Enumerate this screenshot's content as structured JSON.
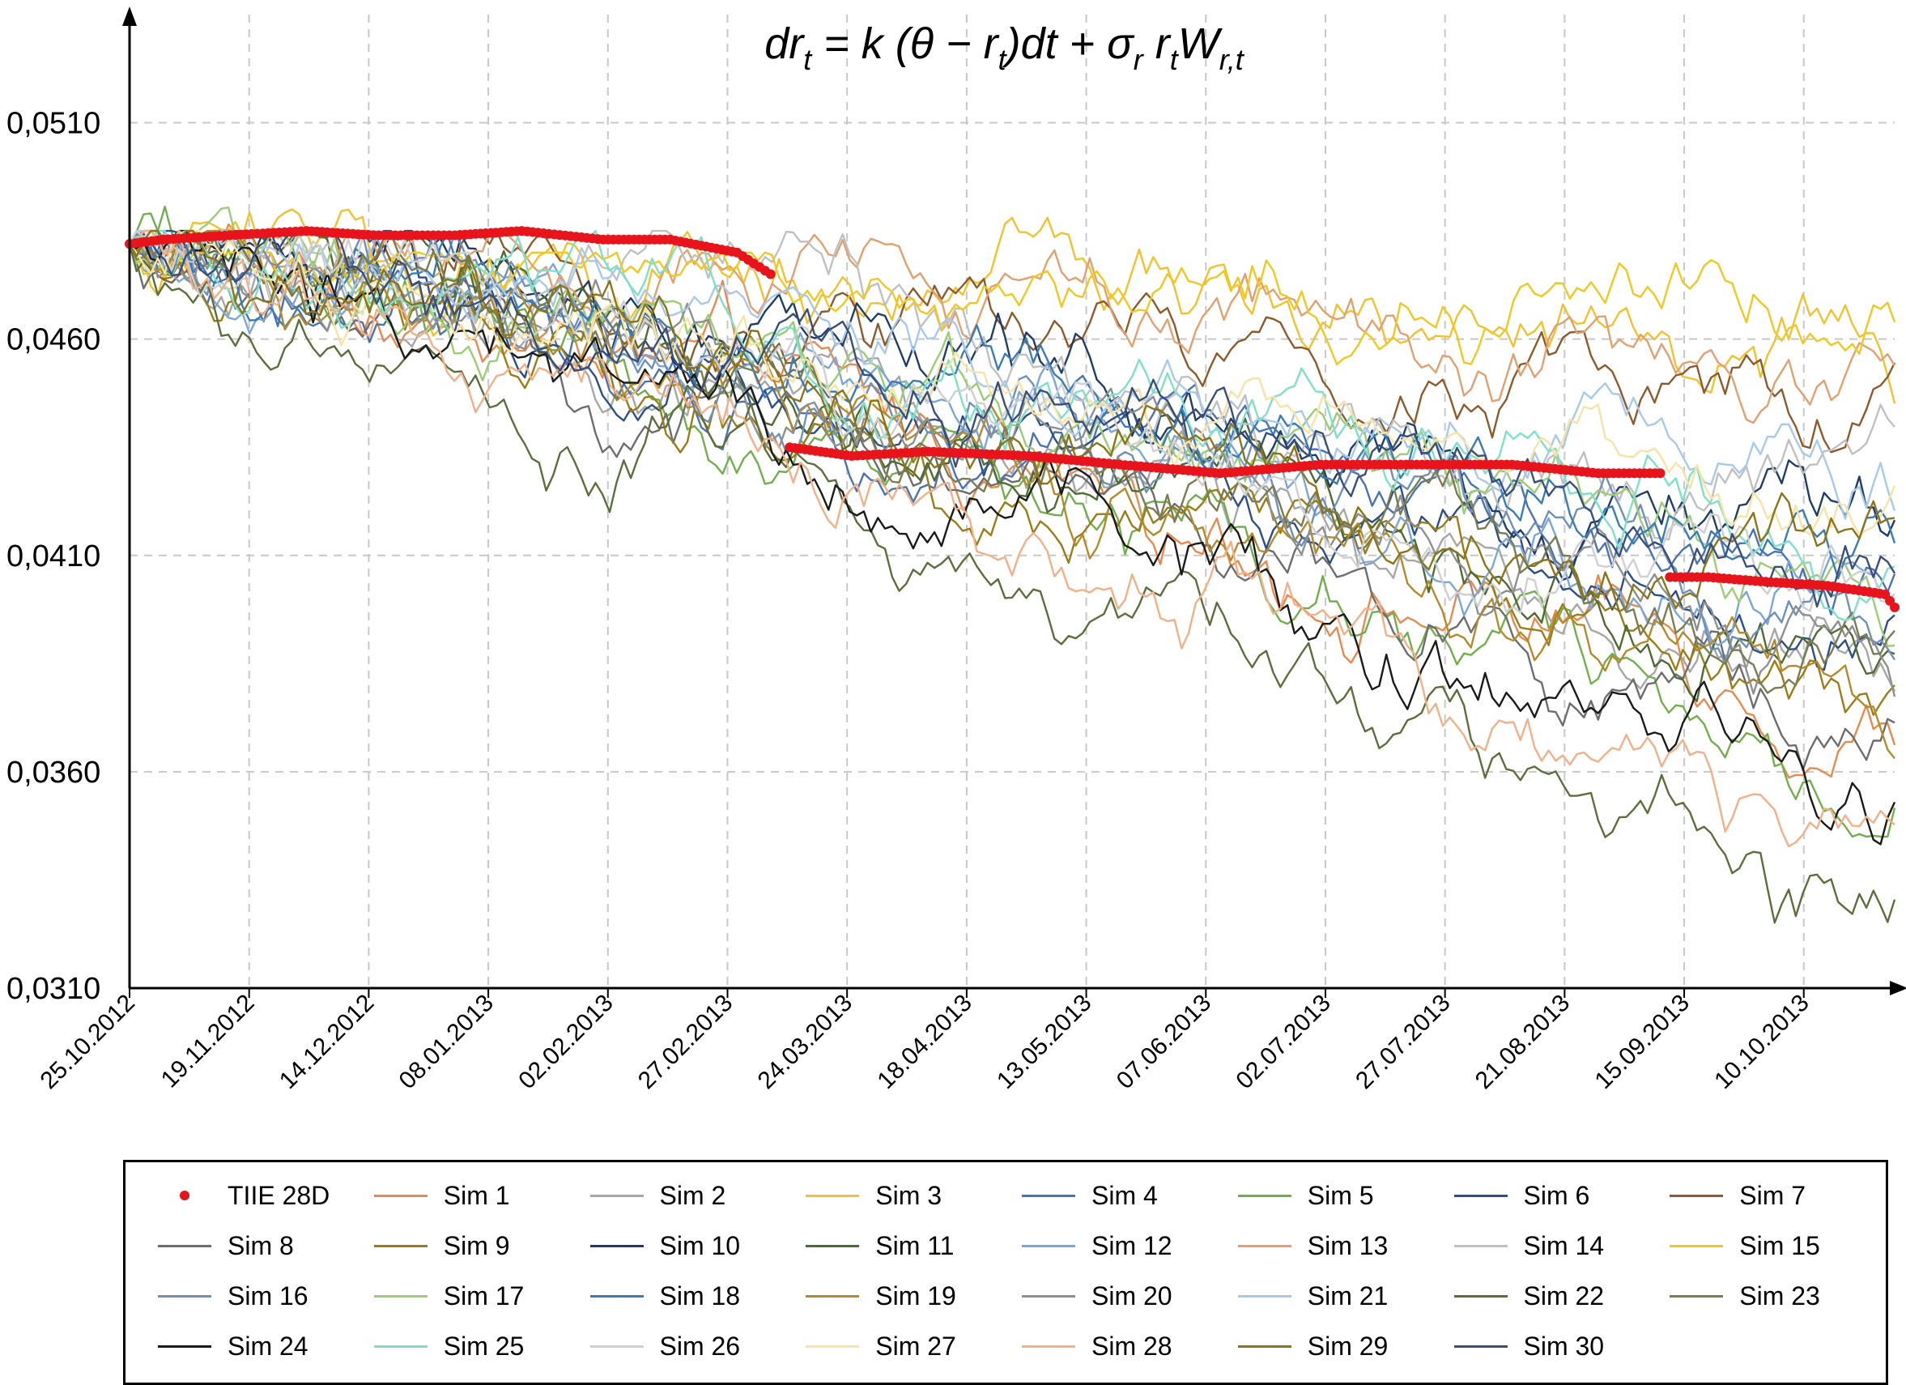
{
  "chart_data": {
    "type": "line",
    "title": "dr_t = k(θ − r_t)dt + σ_r r_t W_r,t",
    "title_parts": {
      "lhs": "dr",
      "sub_t1": "t",
      "eq": " = k (θ − r",
      "sub_t2": "t",
      "mid": ")dt + σ",
      "sub_r": "r",
      "r": " r",
      "sub_t3": "t",
      "w": "W",
      "sub_rt": "r,t"
    },
    "xlabel": "",
    "ylabel": "",
    "ylim": [
      0.031,
      0.0535
    ],
    "y_ticks": [
      {
        "value": 0.031,
        "label": "0,0310"
      },
      {
        "value": 0.036,
        "label": "0,0360"
      },
      {
        "value": 0.041,
        "label": "0,0410"
      },
      {
        "value": 0.046,
        "label": "0,0460"
      },
      {
        "value": 0.051,
        "label": "0,0510"
      }
    ],
    "x_range": [
      "2012-10-25",
      "2013-10-29"
    ],
    "x_ticks": [
      "25.10.2012",
      "19.11.2012",
      "14.12.2012",
      "08.01.2013",
      "02.02.2013",
      "27.02.2013",
      "24.03.2013",
      "18.04.2013",
      "13.05.2013",
      "07.06.2013",
      "02.07.2013",
      "27.07.2013",
      "21.08.2013",
      "15.09.2013",
      "10.10.2013"
    ],
    "grid": true,
    "legend_position": "bottom",
    "tiie": {
      "name": "TIIE 28D",
      "color": "#e8141c",
      "segments": [
        {
          "x": [
            "2012-10-25",
            "2012-11-01",
            "2012-11-15",
            "2012-12-01",
            "2012-12-15",
            "2013-01-01",
            "2013-01-15",
            "2013-02-01",
            "2013-02-15",
            "2013-03-01",
            "2013-03-08"
          ],
          "y": [
            0.0482,
            0.0483,
            0.0484,
            0.0485,
            0.0484,
            0.0484,
            0.0485,
            0.0483,
            0.0483,
            0.048,
            0.0475
          ]
        },
        {
          "x": [
            "2013-03-12",
            "2013-03-25",
            "2013-04-10",
            "2013-05-01",
            "2013-05-20",
            "2013-06-10",
            "2013-07-01",
            "2013-07-20",
            "2013-08-10",
            "2013-08-28",
            "2013-09-10"
          ],
          "y": [
            0.0435,
            0.0433,
            0.0434,
            0.0433,
            0.0431,
            0.0429,
            0.0431,
            0.0431,
            0.0431,
            0.0429,
            0.0429
          ]
        },
        {
          "x": [
            "2013-09-12",
            "2013-09-20",
            "2013-10-01",
            "2013-10-15",
            "2013-10-27",
            "2013-10-29"
          ],
          "y": [
            0.0405,
            0.0405,
            0.0404,
            0.0403,
            0.0401,
            0.0398
          ]
        }
      ]
    },
    "series": [
      {
        "name": "Sim 1",
        "color": "#e88a4f",
        "end": 0.0365,
        "lo": 0.0335,
        "hi": 0.0495
      },
      {
        "name": "Sim 2",
        "color": "#a7a7a7",
        "end": 0.0375,
        "lo": 0.0345,
        "hi": 0.048
      },
      {
        "name": "Sim 3",
        "color": "#f2c12e",
        "end": 0.0455,
        "lo": 0.042,
        "hi": 0.049
      },
      {
        "name": "Sim 4",
        "color": "#4a72b5",
        "end": 0.04,
        "lo": 0.0375,
        "hi": 0.0485
      },
      {
        "name": "Sim 5",
        "color": "#72ae4e",
        "end": 0.035,
        "lo": 0.0345,
        "hi": 0.0512
      },
      {
        "name": "Sim 6",
        "color": "#2b4f86",
        "end": 0.0385,
        "lo": 0.037,
        "hi": 0.0485
      },
      {
        "name": "Sim 7",
        "color": "#8e5a2c",
        "end": 0.044,
        "lo": 0.039,
        "hi": 0.0485
      },
      {
        "name": "Sim 8",
        "color": "#6d6d6d",
        "end": 0.036,
        "lo": 0.0335,
        "hi": 0.048
      },
      {
        "name": "Sim 9",
        "color": "#9a7d17",
        "end": 0.0375,
        "lo": 0.0365,
        "hi": 0.0485
      },
      {
        "name": "Sim 10",
        "color": "#1f3d66",
        "end": 0.041,
        "lo": 0.038,
        "hi": 0.0485
      },
      {
        "name": "Sim 11",
        "color": "#4f6b33",
        "end": 0.038,
        "lo": 0.037,
        "hi": 0.0485
      },
      {
        "name": "Sim 12",
        "color": "#7ba6d8",
        "end": 0.0395,
        "lo": 0.038,
        "hi": 0.0485
      },
      {
        "name": "Sim 13",
        "color": "#e0a070",
        "end": 0.045,
        "lo": 0.042,
        "hi": 0.0485
      },
      {
        "name": "Sim 14",
        "color": "#c0c0c0",
        "end": 0.042,
        "lo": 0.04,
        "hi": 0.0485
      },
      {
        "name": "Sim 15",
        "color": "#f0c820",
        "end": 0.0465,
        "lo": 0.042,
        "hi": 0.048
      },
      {
        "name": "Sim 16",
        "color": "#6f90b8",
        "end": 0.0385,
        "lo": 0.0375,
        "hi": 0.0485
      },
      {
        "name": "Sim 17",
        "color": "#9ccc76",
        "end": 0.0395,
        "lo": 0.038,
        "hi": 0.0495
      },
      {
        "name": "Sim 18",
        "color": "#3b7cb6",
        "end": 0.041,
        "lo": 0.0385,
        "hi": 0.0485
      },
      {
        "name": "Sim 19",
        "color": "#b58a2a",
        "end": 0.037,
        "lo": 0.036,
        "hi": 0.0485
      },
      {
        "name": "Sim 20",
        "color": "#8f8f8f",
        "end": 0.038,
        "lo": 0.0365,
        "hi": 0.048
      },
      {
        "name": "Sim 21",
        "color": "#a9c9ea",
        "end": 0.042,
        "lo": 0.0405,
        "hi": 0.0485
      },
      {
        "name": "Sim 22",
        "color": "#5b6e3c",
        "end": 0.031,
        "lo": 0.03,
        "hi": 0.048
      },
      {
        "name": "Sim 23",
        "color": "#7c7c52",
        "end": 0.0385,
        "lo": 0.0375,
        "hi": 0.0485
      },
      {
        "name": "Sim 24",
        "color": "#1a1a1a",
        "end": 0.034,
        "lo": 0.0335,
        "hi": 0.0485
      },
      {
        "name": "Sim 25",
        "color": "#7fe0c8",
        "end": 0.041,
        "lo": 0.0395,
        "hi": 0.0485
      },
      {
        "name": "Sim 26",
        "color": "#d0d0d0",
        "end": 0.0395,
        "lo": 0.038,
        "hi": 0.0485
      },
      {
        "name": "Sim 27",
        "color": "#f8e3a6",
        "end": 0.042,
        "lo": 0.0405,
        "hi": 0.0485
      },
      {
        "name": "Sim 28",
        "color": "#f2b088",
        "end": 0.033,
        "lo": 0.0315,
        "hi": 0.0485
      },
      {
        "name": "Sim 29",
        "color": "#8c7418",
        "end": 0.0395,
        "lo": 0.038,
        "hi": 0.0485
      },
      {
        "name": "Sim 30",
        "color": "#394f7a",
        "end": 0.04,
        "lo": 0.0385,
        "hi": 0.0485
      }
    ]
  }
}
